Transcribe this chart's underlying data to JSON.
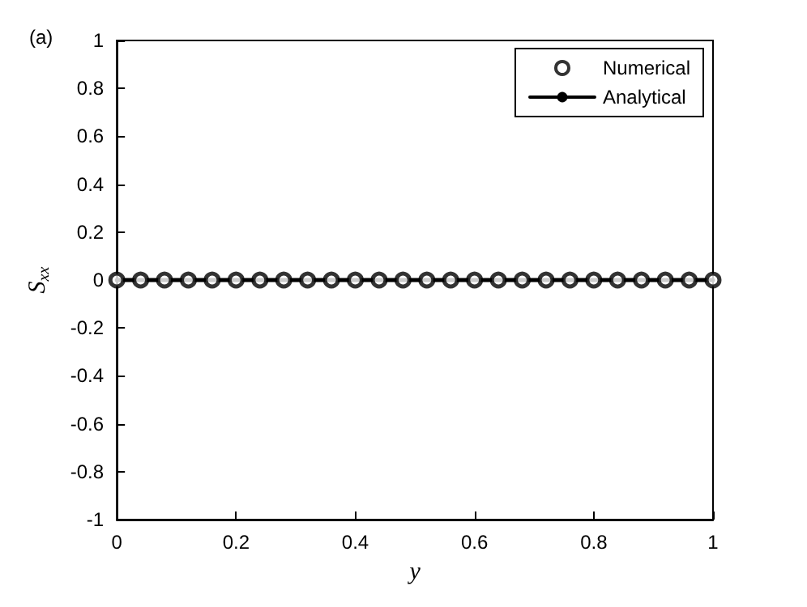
{
  "chart_data": {
    "type": "line",
    "xlabel": "y",
    "ylabel": "S$_{xx}$",
    "annotations": [
      "(a)"
    ],
    "series": [
      {
        "name": "Numerical",
        "type": "scatter",
        "marker": "circle",
        "color": "#000000",
        "x": [
          0,
          0.04,
          0.08,
          0.12,
          0.16,
          0.2,
          0.24,
          0.28,
          0.32,
          0.36,
          0.4,
          0.44,
          0.48,
          0.52,
          0.56,
          0.6,
          0.64,
          0.68,
          0.72,
          0.76,
          0.8,
          0.84,
          0.88,
          0.92,
          0.96,
          1
        ],
        "values": [
          0,
          0,
          0,
          0,
          0,
          0,
          0,
          0,
          0,
          0,
          0,
          0,
          0,
          0,
          0,
          0,
          0,
          0,
          0,
          0,
          0,
          0,
          0,
          0,
          0,
          0
        ]
      },
      {
        "name": "Analytical",
        "type": "line",
        "line_style": "solid",
        "color": "#000000",
        "x": [
          0,
          1
        ],
        "values": [
          0,
          0
        ]
      }
    ],
    "xlim": [
      0,
      1
    ],
    "xticks": [
      0,
      0.2,
      0.4,
      0.6,
      0.8,
      1
    ],
    "ylim": [
      -1,
      1
    ],
    "yticks": [
      -1,
      -0.8,
      -0.6,
      -0.4,
      -0.2,
      0,
      0.2,
      0.4,
      0.6,
      0.8,
      1
    ],
    "grid": false,
    "legend": "top right"
  }
}
